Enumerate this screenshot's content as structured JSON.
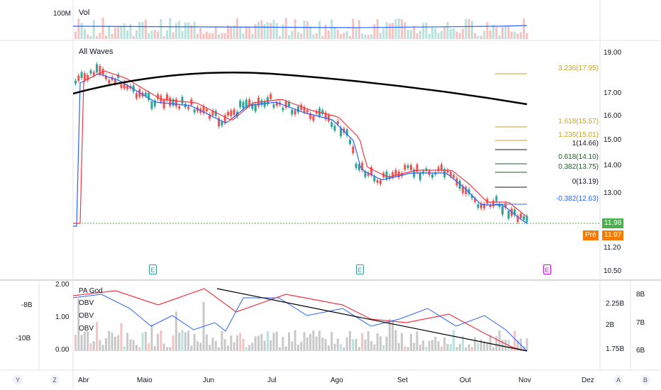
{
  "volume_pane": {
    "title": "Vol",
    "left_scale_label": "100M"
  },
  "main_pane": {
    "title": "All Waves",
    "price_axis": [
      "19.00",
      "17.00",
      "16.00",
      "15.00",
      "14.00",
      "13.00",
      "11.20",
      "10.50"
    ],
    "fib_levels": [
      {
        "label": "3.236(17.95)",
        "color": "#c9a227"
      },
      {
        "label": "1.618(15.57)",
        "color": "#c9a227"
      },
      {
        "label": "1.236(15.01)",
        "color": "#c9a227"
      },
      {
        "label": "1(14.66)",
        "color": "#131722"
      },
      {
        "label": "0.618(14.10)",
        "color": "#1b5e20"
      },
      {
        "label": "0.382(13.75)",
        "color": "#1b5e20"
      },
      {
        "label": "0(13.19)",
        "color": "#131722"
      },
      {
        "label": "-0.382(12.63)",
        "color": "#2962ff"
      }
    ],
    "last_price": "11.98",
    "pre_label": "Pré",
    "pre_price": "11.97",
    "earnings_marker": "E",
    "colors": {
      "up": "#26a69a",
      "down": "#ef5350",
      "ma_fast": "#2962ff",
      "ma_slow": "#f23645",
      "ma_long": "#000000",
      "last_line": "#4caf50",
      "pre": "#f57c00"
    }
  },
  "indicator_pane": {
    "legend": [
      "PA God",
      "OBV",
      "OBV",
      "OBV"
    ],
    "left_axis": [
      "2.00",
      "1.00",
      "0.00"
    ],
    "far_left_axis": [
      "-8B",
      "-10B"
    ],
    "right_axis_1": [
      "2.25B",
      "2B",
      "1.75B"
    ],
    "right_axis_2": [
      "8B",
      "7B",
      "6B"
    ]
  },
  "time_axis": [
    "Abr",
    "Maio",
    "Jun",
    "Jul",
    "Ago",
    "Set",
    "Out",
    "Nov",
    "Dez"
  ],
  "bottom_buttons": {
    "y": "Y",
    "z": "Z",
    "a": "A",
    "b": "B"
  }
}
